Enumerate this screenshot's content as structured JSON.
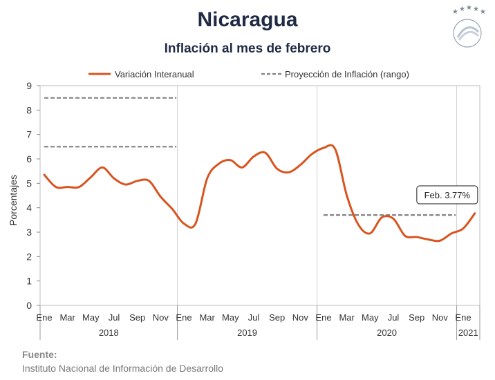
{
  "header": {
    "title": "Nicaragua",
    "subtitle": "Inflación al mes de febrero"
  },
  "footer": {
    "label": "Fuente:",
    "text": "Instituto Nacional de Información de  Desarrollo"
  },
  "chart_data": {
    "type": "line",
    "title": "Inflación al mes de febrero",
    "ylabel": "Porcentajes",
    "ylim": [
      0,
      9
    ],
    "yticks": [
      0,
      1,
      2,
      3,
      4,
      5,
      6,
      7,
      8,
      9
    ],
    "grid": "vertical",
    "legend_position": "top",
    "colors": {
      "series": "#d9531e",
      "projection": "#808080",
      "grid": "#d0d0d0"
    },
    "x_month_labels": [
      "Ene",
      "Mar",
      "May",
      "Jul",
      "Sep",
      "Nov"
    ],
    "years": [
      {
        "label": "2018",
        "start": "2018-01"
      },
      {
        "label": "2019",
        "start": "2019-01"
      },
      {
        "label": "2020",
        "start": "2020-01"
      },
      {
        "label": "2021",
        "start": "2021-01"
      }
    ],
    "x_end": "2021-02",
    "series": [
      {
        "name": "Variación Interanual",
        "points": [
          [
            "2018-01",
            5.35
          ],
          [
            "2018-02",
            4.85
          ],
          [
            "2018-03",
            4.85
          ],
          [
            "2018-04",
            4.85
          ],
          [
            "2018-05",
            5.25
          ],
          [
            "2018-06",
            5.65
          ],
          [
            "2018-07",
            5.2
          ],
          [
            "2018-08",
            4.95
          ],
          [
            "2018-09",
            5.1
          ],
          [
            "2018-10",
            5.1
          ],
          [
            "2018-11",
            4.45
          ],
          [
            "2018-12",
            3.95
          ],
          [
            "2019-01",
            3.35
          ],
          [
            "2019-02",
            3.35
          ],
          [
            "2019-03",
            5.2
          ],
          [
            "2019-04",
            5.8
          ],
          [
            "2019-05",
            5.95
          ],
          [
            "2019-06",
            5.65
          ],
          [
            "2019-07",
            6.1
          ],
          [
            "2019-08",
            6.25
          ],
          [
            "2019-09",
            5.6
          ],
          [
            "2019-10",
            5.45
          ],
          [
            "2019-11",
            5.75
          ],
          [
            "2019-12",
            6.2
          ],
          [
            "2020-01",
            6.45
          ],
          [
            "2020-02",
            6.4
          ],
          [
            "2020-03",
            4.5
          ],
          [
            "2020-04",
            3.3
          ],
          [
            "2020-05",
            2.95
          ],
          [
            "2020-06",
            3.6
          ],
          [
            "2020-07",
            3.55
          ],
          [
            "2020-08",
            2.85
          ],
          [
            "2020-09",
            2.8
          ],
          [
            "2020-10",
            2.7
          ],
          [
            "2020-11",
            2.65
          ],
          [
            "2020-12",
            2.95
          ],
          [
            "2021-01",
            3.15
          ],
          [
            "2021-02",
            3.77
          ]
        ]
      }
    ],
    "projection": {
      "name": "Proyección de Inflación (rango)",
      "segments": [
        {
          "from": "2018-01",
          "to": "2018-12",
          "value": 8.5
        },
        {
          "from": "2018-01",
          "to": "2018-12",
          "value": 6.5
        },
        {
          "from": "2020-01",
          "to": "2020-12",
          "value": 3.7
        }
      ]
    },
    "annotation": {
      "text": "Feb. 3.77%",
      "x": "2021-02",
      "y": 3.77
    }
  }
}
